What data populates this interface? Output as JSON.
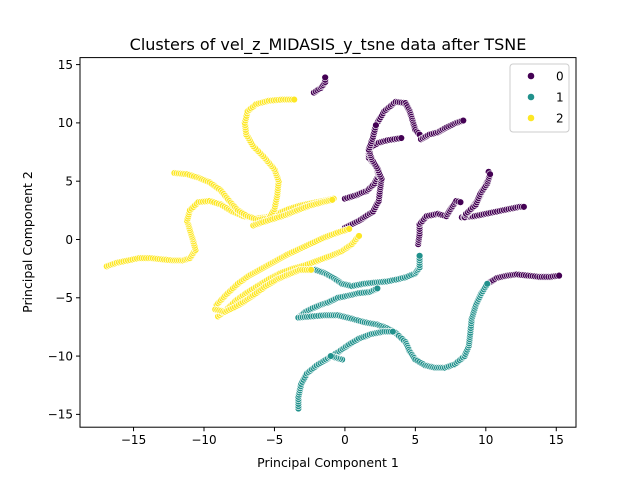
{
  "chart_data": {
    "type": "scatter",
    "title": "Clusters of vel_z_MIDASIS_y_tsne data after TSNE",
    "xlabel": "Principal Component 1",
    "ylabel": "Principal Component 2",
    "xlim": [
      -18.8,
      16.4
    ],
    "ylim": [
      -16.1,
      15.6
    ],
    "xticks": [
      -15,
      -10,
      -5,
      0,
      5,
      10,
      15
    ],
    "yticks": [
      -15,
      -10,
      -5,
      0,
      5,
      10,
      15
    ],
    "xtick_labels": [
      "−15",
      "−10",
      "−5",
      "0",
      "5",
      "10",
      "15"
    ],
    "ytick_labels": [
      "−15",
      "−10",
      "−5",
      "0",
      "5",
      "10",
      "15"
    ],
    "grid": false,
    "legend_position": "top-right",
    "series": [
      {
        "name": "0",
        "color": "#440154",
        "paths": [
          [
            [
              -2.2,
              12.6
            ],
            [
              -1.7,
              13.0
            ],
            [
              -1.4,
              13.5
            ],
            [
              -1.4,
              13.9
            ]
          ],
          [
            [
              0.0,
              3.5
            ],
            [
              0.8,
              3.8
            ],
            [
              1.6,
              4.2
            ],
            [
              2.1,
              4.8
            ],
            [
              2.4,
              5.5
            ],
            [
              2.2,
              6.3
            ],
            [
              1.7,
              7.0
            ],
            [
              1.7,
              7.8
            ],
            [
              2.4,
              8.3
            ],
            [
              3.0,
              8.5
            ],
            [
              4.0,
              8.7
            ]
          ],
          [
            [
              2.2,
              9.8
            ],
            [
              2.8,
              11.0
            ],
            [
              3.6,
              11.8
            ],
            [
              4.3,
              11.7
            ],
            [
              4.6,
              11.0
            ],
            [
              4.8,
              10.2
            ],
            [
              5.0,
              9.4
            ],
            [
              5.3,
              9.0
            ]
          ],
          [
            [
              5.4,
              8.6
            ],
            [
              6.0,
              9.0
            ],
            [
              6.6,
              9.2
            ],
            [
              7.2,
              9.6
            ],
            [
              7.9,
              10.0
            ],
            [
              8.4,
              10.2
            ]
          ],
          [
            [
              0.0,
              1.0
            ],
            [
              1.0,
              1.6
            ],
            [
              2.0,
              2.4
            ],
            [
              2.4,
              3.3
            ],
            [
              2.5,
              4.3
            ],
            [
              2.6,
              5.2
            ],
            [
              2.3,
              6.1
            ],
            [
              1.9,
              6.9
            ],
            [
              1.7,
              7.7
            ],
            [
              2.0,
              8.8
            ],
            [
              2.2,
              9.8
            ]
          ],
          [
            [
              5.2,
              -0.4
            ],
            [
              5.3,
              0.5
            ],
            [
              5.3,
              1.3
            ],
            [
              5.8,
              2.0
            ],
            [
              6.6,
              2.2
            ],
            [
              7.2,
              2.0
            ],
            [
              7.5,
              2.6
            ],
            [
              7.9,
              3.3
            ],
            [
              8.2,
              3.2
            ]
          ],
          [
            [
              8.3,
              1.9
            ],
            [
              9.2,
              2.0
            ],
            [
              10.0,
              2.2
            ],
            [
              10.8,
              2.4
            ],
            [
              11.6,
              2.6
            ],
            [
              12.4,
              2.8
            ],
            [
              12.7,
              2.8
            ]
          ],
          [
            [
              8.5,
              1.9
            ],
            [
              9.0,
              2.7
            ],
            [
              9.5,
              3.5
            ],
            [
              9.9,
              4.5
            ],
            [
              10.3,
              5.5
            ],
            [
              10.2,
              5.8
            ]
          ],
          [
            [
              8.6,
              2.2
            ],
            [
              9.3,
              3.0
            ],
            [
              9.6,
              3.9
            ],
            [
              10.1,
              4.8
            ],
            [
              10.3,
              5.6
            ]
          ],
          [
            [
              10.1,
              -3.8
            ],
            [
              10.8,
              -3.3
            ],
            [
              11.5,
              -3.1
            ],
            [
              12.2,
              -3.0
            ],
            [
              13.0,
              -3.1
            ],
            [
              13.8,
              -3.2
            ],
            [
              14.6,
              -3.2
            ],
            [
              15.2,
              -3.1
            ]
          ]
        ]
      },
      {
        "name": "1",
        "color": "#21918c",
        "paths": [
          [
            [
              -2.1,
              -2.6
            ],
            [
              -1.4,
              -2.9
            ],
            [
              -0.8,
              -3.3
            ],
            [
              -0.2,
              -3.8
            ],
            [
              0.5,
              -4.0
            ],
            [
              1.3,
              -3.8
            ],
            [
              2.1,
              -3.7
            ],
            [
              3.0,
              -3.6
            ],
            [
              3.8,
              -3.4
            ],
            [
              4.4,
              -3.2
            ],
            [
              5.0,
              -2.9
            ],
            [
              5.3,
              -2.4
            ],
            [
              5.3,
              -1.4
            ]
          ],
          [
            [
              -3.2,
              -6.6
            ],
            [
              -2.8,
              -6.2
            ],
            [
              -2.3,
              -5.9
            ],
            [
              -1.7,
              -5.6
            ],
            [
              -1.2,
              -5.4
            ],
            [
              -0.5,
              -5.0
            ],
            [
              0.3,
              -4.8
            ],
            [
              1.0,
              -4.6
            ],
            [
              1.8,
              -4.5
            ],
            [
              2.3,
              -4.2
            ]
          ],
          [
            [
              -3.3,
              -6.7
            ],
            [
              -2.4,
              -6.6
            ],
            [
              -1.4,
              -6.5
            ],
            [
              -0.5,
              -6.5
            ],
            [
              0.5,
              -6.8
            ],
            [
              1.4,
              -7.1
            ],
            [
              2.3,
              -7.3
            ],
            [
              3.0,
              -7.6
            ],
            [
              3.6,
              -8.0
            ],
            [
              4.3,
              -8.8
            ],
            [
              4.6,
              -9.6
            ],
            [
              5.0,
              -10.3
            ],
            [
              5.7,
              -10.8
            ],
            [
              6.4,
              -11.0
            ],
            [
              7.1,
              -11.0
            ],
            [
              7.8,
              -10.7
            ],
            [
              8.5,
              -10.0
            ],
            [
              8.8,
              -9.1
            ],
            [
              8.9,
              -8.0
            ],
            [
              9.0,
              -6.8
            ],
            [
              9.3,
              -5.6
            ],
            [
              9.7,
              -4.6
            ],
            [
              10.1,
              -3.8
            ]
          ],
          [
            [
              -3.3,
              -14.5
            ],
            [
              -3.3,
              -13.5
            ],
            [
              -3.1,
              -12.4
            ],
            [
              -2.7,
              -11.5
            ],
            [
              -2.0,
              -10.8
            ],
            [
              -1.2,
              -10.2
            ],
            [
              -0.4,
              -9.6
            ],
            [
              0.3,
              -9.0
            ],
            [
              1.0,
              -8.5
            ],
            [
              1.9,
              -8.1
            ],
            [
              2.8,
              -7.9
            ],
            [
              3.4,
              -7.9
            ]
          ],
          [
            [
              -0.2,
              -10.3
            ],
            [
              -0.5,
              -10.2
            ],
            [
              -1.0,
              -10.0
            ]
          ]
        ]
      },
      {
        "name": "2",
        "color": "#fde725",
        "paths": [
          [
            [
              -16.9,
              -2.3
            ],
            [
              -16.2,
              -2.0
            ],
            [
              -15.4,
              -1.8
            ],
            [
              -14.6,
              -1.6
            ],
            [
              -13.8,
              -1.6
            ],
            [
              -13.0,
              -1.7
            ],
            [
              -12.2,
              -1.8
            ],
            [
              -11.5,
              -1.8
            ],
            [
              -11.0,
              -1.6
            ],
            [
              -10.6,
              -0.9
            ],
            [
              -10.8,
              0.0
            ],
            [
              -11.0,
              0.8
            ],
            [
              -11.2,
              1.6
            ],
            [
              -11.0,
              2.5
            ],
            [
              -10.4,
              3.2
            ],
            [
              -9.6,
              3.3
            ],
            [
              -8.8,
              3.0
            ],
            [
              -8.0,
              2.4
            ],
            [
              -7.2,
              2.0
            ],
            [
              -6.4,
              1.8
            ],
            [
              -5.6,
              1.9
            ],
            [
              -4.8,
              2.2
            ],
            [
              -4.0,
              2.6
            ],
            [
              -3.2,
              2.9
            ],
            [
              -2.4,
              3.1
            ],
            [
              -1.6,
              3.3
            ],
            [
              -0.8,
              3.5
            ]
          ],
          [
            [
              -12.1,
              5.7
            ],
            [
              -11.2,
              5.6
            ],
            [
              -10.4,
              5.3
            ],
            [
              -9.6,
              4.9
            ],
            [
              -8.8,
              4.2
            ],
            [
              -8.2,
              3.3
            ],
            [
              -7.6,
              2.5
            ],
            [
              -6.9,
              2.0
            ],
            [
              -6.2,
              1.7
            ],
            [
              -5.4,
              1.8
            ],
            [
              -5.0,
              2.6
            ],
            [
              -4.8,
              3.8
            ],
            [
              -4.7,
              5.0
            ],
            [
              -5.0,
              6.0
            ],
            [
              -5.7,
              7.0
            ],
            [
              -6.5,
              8.0
            ],
            [
              -7.0,
              9.0
            ],
            [
              -7.1,
              10.0
            ],
            [
              -6.9,
              11.0
            ],
            [
              -6.3,
              11.6
            ],
            [
              -5.4,
              11.9
            ],
            [
              -4.4,
              12.0
            ],
            [
              -3.6,
              12.0
            ]
          ],
          [
            [
              -6.5,
              1.2
            ],
            [
              -5.8,
              1.5
            ],
            [
              -5.0,
              1.8
            ],
            [
              -4.2,
              2.1
            ],
            [
              -3.4,
              2.5
            ],
            [
              -2.5,
              2.9
            ],
            [
              -1.6,
              3.2
            ],
            [
              -0.9,
              3.4
            ]
          ],
          [
            [
              -9.0,
              -6.6
            ],
            [
              -8.3,
              -5.9
            ],
            [
              -7.7,
              -5.2
            ],
            [
              -7.0,
              -4.6
            ],
            [
              -6.2,
              -4.0
            ],
            [
              -5.4,
              -3.4
            ],
            [
              -4.6,
              -2.9
            ],
            [
              -3.7,
              -2.5
            ],
            [
              -2.8,
              -2.2
            ],
            [
              -1.9,
              -1.8
            ],
            [
              -1.0,
              -1.4
            ],
            [
              -0.2,
              -1.0
            ],
            [
              0.5,
              -0.4
            ],
            [
              1.0,
              0.3
            ]
          ],
          [
            [
              -9.1,
              -5.6
            ],
            [
              -8.4,
              -4.7
            ],
            [
              -7.6,
              -3.8
            ],
            [
              -6.8,
              -3.1
            ],
            [
              -5.9,
              -2.5
            ],
            [
              -5.0,
              -1.9
            ],
            [
              -4.1,
              -1.3
            ],
            [
              -3.2,
              -0.8
            ],
            [
              -2.3,
              -0.3
            ],
            [
              -1.4,
              0.2
            ],
            [
              -0.5,
              0.6
            ],
            [
              0.3,
              0.9
            ]
          ],
          [
            [
              -9.2,
              -6.0
            ],
            [
              -8.5,
              -6.2
            ],
            [
              -7.8,
              -5.8
            ],
            [
              -7.1,
              -5.3
            ],
            [
              -6.4,
              -4.7
            ],
            [
              -5.6,
              -4.0
            ],
            [
              -4.8,
              -3.4
            ],
            [
              -4.0,
              -3.0
            ],
            [
              -3.2,
              -2.6
            ],
            [
              -2.4,
              -2.6
            ]
          ]
        ]
      }
    ]
  }
}
